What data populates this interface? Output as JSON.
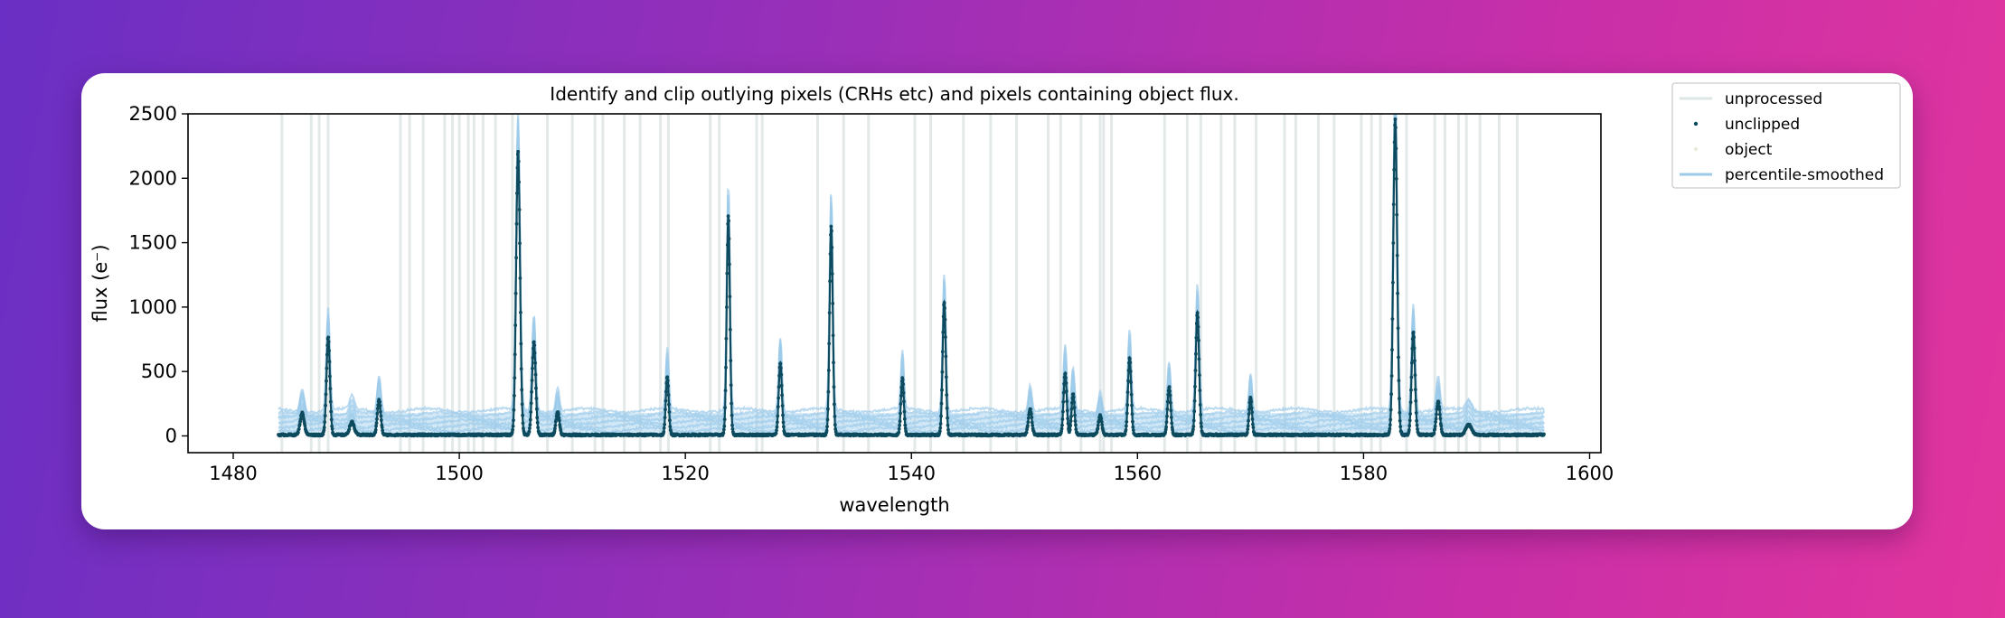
{
  "chart_data": {
    "type": "scatter",
    "title": "Identify and clip outlying pixels (CRHs etc) and pixels containing object flux.",
    "xlabel": "wavelength",
    "ylabel": "flux (e⁻)",
    "xlim": [
      1476,
      1601
    ],
    "ylim": [
      -130,
      2500
    ],
    "xticks": [
      1480,
      1500,
      1520,
      1540,
      1560,
      1580,
      1600
    ],
    "yticks": [
      0,
      500,
      1000,
      1500,
      2000,
      2500
    ],
    "x_range": [
      1484,
      1596
    ],
    "legend_position": "outside-top-right",
    "grid": false,
    "series": [
      {
        "name": "unprocessed",
        "kind": "line",
        "color": "#dfe6e6"
      },
      {
        "name": "unclipped",
        "kind": "points",
        "color": "#0d4a5e"
      },
      {
        "name": "object",
        "kind": "points",
        "color": "#e6ecd8"
      },
      {
        "name": "percentile-smoothed",
        "kind": "line",
        "color": "#9ccbea"
      }
    ],
    "emission_peaks": [
      {
        "x": 1486.1,
        "y": 170,
        "w": 0.18
      },
      {
        "x": 1488.4,
        "y": 760,
        "w": 0.15
      },
      {
        "x": 1490.5,
        "y": 100,
        "w": 0.2
      },
      {
        "x": 1492.9,
        "y": 270,
        "w": 0.15
      },
      {
        "x": 1505.2,
        "y": 2200,
        "w": 0.17
      },
      {
        "x": 1506.6,
        "y": 720,
        "w": 0.16
      },
      {
        "x": 1508.7,
        "y": 180,
        "w": 0.15
      },
      {
        "x": 1518.4,
        "y": 450,
        "w": 0.13
      },
      {
        "x": 1523.8,
        "y": 1700,
        "w": 0.14
      },
      {
        "x": 1528.4,
        "y": 560,
        "w": 0.14
      },
      {
        "x": 1532.9,
        "y": 1620,
        "w": 0.14
      },
      {
        "x": 1539.2,
        "y": 440,
        "w": 0.13
      },
      {
        "x": 1542.9,
        "y": 1030,
        "w": 0.14
      },
      {
        "x": 1550.5,
        "y": 200,
        "w": 0.15
      },
      {
        "x": 1553.6,
        "y": 480,
        "w": 0.14
      },
      {
        "x": 1554.3,
        "y": 320,
        "w": 0.13
      },
      {
        "x": 1556.7,
        "y": 150,
        "w": 0.15
      },
      {
        "x": 1559.3,
        "y": 600,
        "w": 0.14
      },
      {
        "x": 1562.8,
        "y": 370,
        "w": 0.14
      },
      {
        "x": 1565.3,
        "y": 950,
        "w": 0.15
      },
      {
        "x": 1570.0,
        "y": 290,
        "w": 0.13
      },
      {
        "x": 1582.8,
        "y": 2450,
        "w": 0.17
      },
      {
        "x": 1584.4,
        "y": 800,
        "w": 0.15
      },
      {
        "x": 1586.6,
        "y": 260,
        "w": 0.16
      },
      {
        "x": 1589.3,
        "y": 80,
        "w": 0.25
      }
    ],
    "unprocessed_spikes_x": [
      1484.3,
      1486.9,
      1487.6,
      1488.4,
      1494.8,
      1495.6,
      1496.8,
      1498.7,
      1499.4,
      1500.0,
      1500.8,
      1501.3,
      1502.1,
      1503.2,
      1504.7,
      1507.8,
      1510.0,
      1512.0,
      1512.7,
      1514.6,
      1516.0,
      1517.8,
      1518.5,
      1522.2,
      1523.0,
      1526.3,
      1526.8,
      1531.7,
      1534.0,
      1536.2,
      1540.3,
      1541.7,
      1544.6,
      1547.0,
      1549.3,
      1552.1,
      1553.2,
      1555.0,
      1556.7,
      1557.0,
      1557.7,
      1562.4,
      1564.4,
      1565.6,
      1567.4,
      1568.6,
      1570.5,
      1573.0,
      1574.0,
      1576.0,
      1577.4,
      1579.8,
      1580.7,
      1581.5,
      1583.8,
      1586.3,
      1587.2,
      1588.4,
      1589.1,
      1590.3,
      1592.0,
      1593.6
    ]
  },
  "legend": {
    "items": [
      "unprocessed",
      "unclipped",
      "object",
      "percentile-smoothed"
    ]
  }
}
